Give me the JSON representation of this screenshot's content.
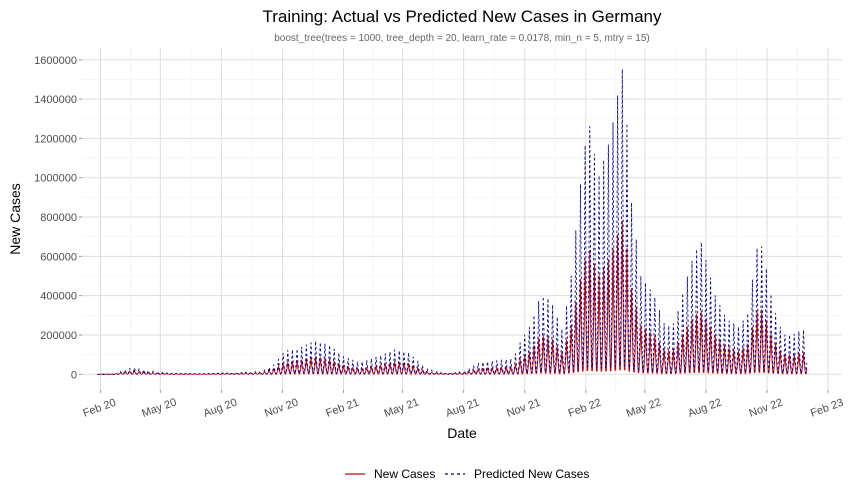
{
  "chart_data": {
    "type": "line",
    "title": "Training: Actual vs Predicted New Cases in Germany",
    "subtitle": "boost_tree(trees = 1000, tree_depth = 20, learn_rate = 0.0178, min_n = 5, mtry = 15)",
    "xlabel": "Date",
    "ylabel": "New Cases",
    "ylim": [
      -80000,
      1660000
    ],
    "xlim": [
      "2020-01-04",
      "2023-02-22"
    ],
    "y_ticks": [
      0,
      200000,
      400000,
      600000,
      800000,
      1000000,
      1200000,
      1400000,
      1600000
    ],
    "y_tick_labels": [
      "0",
      "200000",
      "400000",
      "600000",
      "800000",
      "1000000",
      "1200000",
      "1400000",
      "1600000"
    ],
    "x_ticks": [
      "2020-02-01",
      "2020-05-01",
      "2020-08-01",
      "2020-11-01",
      "2021-02-01",
      "2021-05-01",
      "2021-08-01",
      "2021-11-01",
      "2022-02-01",
      "2022-05-01",
      "2022-08-01",
      "2022-11-01",
      "2023-02-01"
    ],
    "x_tick_labels": [
      "Feb 20",
      "May 20",
      "Aug 20",
      "Nov 20",
      "Feb 21",
      "May 21",
      "Aug 21",
      "Nov 21",
      "Feb 22",
      "May 22",
      "Aug 22",
      "Nov 22",
      "Feb 23"
    ],
    "grid": true,
    "legend_position": "bottom",
    "series": [
      {
        "name": "New Cases",
        "color": "#cc0000",
        "line_style": "solid",
        "points": [
          [
            "2020-01-27",
            0
          ],
          [
            "2020-02-20",
            1000
          ],
          [
            "2020-03-20",
            20000
          ],
          [
            "2020-04-10",
            10000
          ],
          [
            "2020-05-15",
            3000
          ],
          [
            "2020-07-01",
            2000
          ],
          [
            "2020-08-15",
            5000
          ],
          [
            "2020-10-01",
            10000
          ],
          [
            "2020-10-20",
            30000
          ],
          [
            "2020-11-05",
            60000
          ],
          [
            "2020-11-25",
            70000
          ],
          [
            "2020-12-20",
            90000
          ],
          [
            "2021-01-10",
            80000
          ],
          [
            "2021-02-01",
            45000
          ],
          [
            "2021-02-25",
            30000
          ],
          [
            "2021-03-25",
            45000
          ],
          [
            "2021-04-20",
            65000
          ],
          [
            "2021-05-10",
            55000
          ],
          [
            "2021-06-05",
            15000
          ],
          [
            "2021-07-01",
            3000
          ],
          [
            "2021-08-01",
            8000
          ],
          [
            "2021-08-25",
            30000
          ],
          [
            "2021-09-20",
            35000
          ],
          [
            "2021-10-15",
            40000
          ],
          [
            "2021-10-25",
            80000
          ],
          [
            "2021-11-10",
            120000
          ],
          [
            "2021-11-25",
            200000
          ],
          [
            "2021-12-10",
            190000
          ],
          [
            "2021-12-28",
            110000
          ],
          [
            "2022-01-10",
            250000
          ],
          [
            "2022-01-25",
            500000
          ],
          [
            "2022-02-05",
            650000
          ],
          [
            "2022-02-20",
            500000
          ],
          [
            "2022-03-10",
            600000
          ],
          [
            "2022-03-20",
            700000
          ],
          [
            "2022-03-30",
            800000
          ],
          [
            "2022-04-10",
            450000
          ],
          [
            "2022-04-25",
            250000
          ],
          [
            "2022-05-15",
            200000
          ],
          [
            "2022-06-01",
            120000
          ],
          [
            "2022-06-15",
            130000
          ],
          [
            "2022-06-30",
            220000
          ],
          [
            "2022-07-15",
            300000
          ],
          [
            "2022-07-25",
            320000
          ],
          [
            "2022-08-15",
            200000
          ],
          [
            "2022-09-01",
            140000
          ],
          [
            "2022-09-20",
            120000
          ],
          [
            "2022-10-05",
            160000
          ],
          [
            "2022-10-15",
            320000
          ],
          [
            "2022-10-25",
            330000
          ],
          [
            "2022-11-10",
            180000
          ],
          [
            "2022-11-25",
            100000
          ],
          [
            "2022-12-10",
            100000
          ],
          [
            "2022-12-20",
            110000
          ],
          [
            "2022-12-31",
            110000
          ]
        ]
      },
      {
        "name": "Predicted New Cases",
        "color": "#00008b",
        "line_style": "dashed",
        "points": [
          [
            "2020-01-27",
            0
          ],
          [
            "2020-02-20",
            2000
          ],
          [
            "2020-03-20",
            35000
          ],
          [
            "2020-04-10",
            20000
          ],
          [
            "2020-05-15",
            5000
          ],
          [
            "2020-07-01",
            3000
          ],
          [
            "2020-08-15",
            8000
          ],
          [
            "2020-10-01",
            15000
          ],
          [
            "2020-10-20",
            50000
          ],
          [
            "2020-11-05",
            120000
          ],
          [
            "2020-11-25",
            130000
          ],
          [
            "2020-12-20",
            170000
          ],
          [
            "2021-01-10",
            150000
          ],
          [
            "2021-02-01",
            90000
          ],
          [
            "2021-02-25",
            60000
          ],
          [
            "2021-03-25",
            90000
          ],
          [
            "2021-04-20",
            125000
          ],
          [
            "2021-05-10",
            110000
          ],
          [
            "2021-06-05",
            30000
          ],
          [
            "2021-07-01",
            6000
          ],
          [
            "2021-08-01",
            15000
          ],
          [
            "2021-08-25",
            60000
          ],
          [
            "2021-09-20",
            70000
          ],
          [
            "2021-10-15",
            80000
          ],
          [
            "2021-10-25",
            160000
          ],
          [
            "2021-11-10",
            250000
          ],
          [
            "2021-11-25",
            400000
          ],
          [
            "2021-12-10",
            380000
          ],
          [
            "2021-12-28",
            220000
          ],
          [
            "2022-01-10",
            500000
          ],
          [
            "2022-01-25",
            1000000
          ],
          [
            "2022-02-05",
            1300000
          ],
          [
            "2022-02-20",
            1000000
          ],
          [
            "2022-03-10",
            1200000
          ],
          [
            "2022-03-20",
            1400000
          ],
          [
            "2022-03-30",
            1590000
          ],
          [
            "2022-04-10",
            900000
          ],
          [
            "2022-04-25",
            500000
          ],
          [
            "2022-05-15",
            400000
          ],
          [
            "2022-06-01",
            240000
          ],
          [
            "2022-06-15",
            260000
          ],
          [
            "2022-06-30",
            450000
          ],
          [
            "2022-07-15",
            620000
          ],
          [
            "2022-07-25",
            670000
          ],
          [
            "2022-08-15",
            400000
          ],
          [
            "2022-09-01",
            280000
          ],
          [
            "2022-09-20",
            240000
          ],
          [
            "2022-10-05",
            320000
          ],
          [
            "2022-10-15",
            640000
          ],
          [
            "2022-10-25",
            650000
          ],
          [
            "2022-11-10",
            350000
          ],
          [
            "2022-11-25",
            200000
          ],
          [
            "2022-12-10",
            200000
          ],
          [
            "2022-12-20",
            220000
          ],
          [
            "2022-12-31",
            230000
          ]
        ]
      }
    ]
  }
}
